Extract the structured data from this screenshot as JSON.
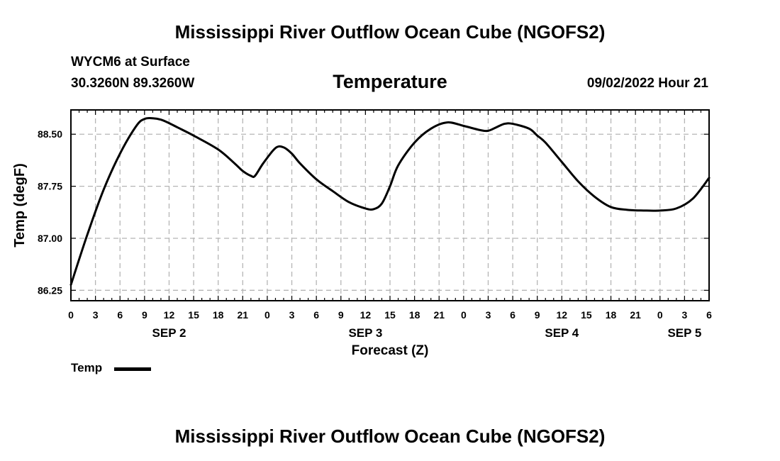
{
  "header": {
    "title": "Mississippi River Outflow Ocean Cube (NGOFS2)",
    "station": "WYCM6 at Surface",
    "coords": "30.3260N  89.3260W",
    "variable": "Temperature",
    "datetime": "09/02/2022 Hour 21"
  },
  "footer": {
    "title": "Mississippi River Outflow Ocean Cube (NGOFS2)"
  },
  "legend": {
    "label": "Temp"
  },
  "chart_data": {
    "type": "line",
    "title": "Temperature",
    "xlabel": "Forecast (Z)",
    "ylabel": "Temp (degF)",
    "xlim": [
      0,
      78
    ],
    "ylim": [
      86.1,
      88.85
    ],
    "yticks": [
      86.25,
      87.0,
      87.75,
      88.5
    ],
    "ytick_labels": [
      "86.25",
      "87.00",
      "87.75",
      "88.50"
    ],
    "xticks": [
      0,
      3,
      6,
      9,
      12,
      15,
      18,
      21,
      24,
      27,
      30,
      33,
      36,
      39,
      42,
      45,
      48,
      51,
      54,
      57,
      60,
      63,
      66,
      69,
      72,
      75,
      78
    ],
    "xtick_labels": [
      "0",
      "3",
      "6",
      "9",
      "12",
      "15",
      "18",
      "21",
      "0",
      "3",
      "6",
      "9",
      "12",
      "15",
      "18",
      "21",
      "0",
      "3",
      "6",
      "9",
      "12",
      "15",
      "18",
      "21",
      "0",
      "3",
      "6"
    ],
    "day_labels": [
      {
        "x": 12,
        "label": "SEP 2"
      },
      {
        "x": 36,
        "label": "SEP 3"
      },
      {
        "x": 60,
        "label": "SEP 4"
      },
      {
        "x": 75,
        "label": "SEP 5"
      }
    ],
    "grid": true,
    "series": [
      {
        "name": "Temp",
        "color": "#000000",
        "x": [
          0,
          2,
          4,
          6,
          8,
          9,
          10,
          11,
          12,
          13,
          15,
          18,
          20,
          21,
          22,
          22.5,
          23.5,
          25,
          26,
          27,
          28,
          30,
          32,
          34,
          36,
          37,
          38,
          39,
          40,
          42,
          44,
          46,
          48,
          50,
          51,
          52,
          53,
          54,
          56,
          57,
          58,
          60,
          62,
          64,
          66,
          68,
          70,
          72,
          74,
          76,
          78
        ],
        "y": [
          86.33,
          87.05,
          87.7,
          88.22,
          88.62,
          88.72,
          88.73,
          88.71,
          88.66,
          88.6,
          88.48,
          88.28,
          88.08,
          87.97,
          87.9,
          87.9,
          88.08,
          88.3,
          88.31,
          88.22,
          88.08,
          87.85,
          87.68,
          87.52,
          87.43,
          87.42,
          87.5,
          87.75,
          88.05,
          88.38,
          88.58,
          88.67,
          88.62,
          88.56,
          88.55,
          88.6,
          88.65,
          88.65,
          88.58,
          88.48,
          88.38,
          88.1,
          87.82,
          87.6,
          87.45,
          87.41,
          87.4,
          87.4,
          87.43,
          87.57,
          87.87
        ]
      }
    ]
  }
}
